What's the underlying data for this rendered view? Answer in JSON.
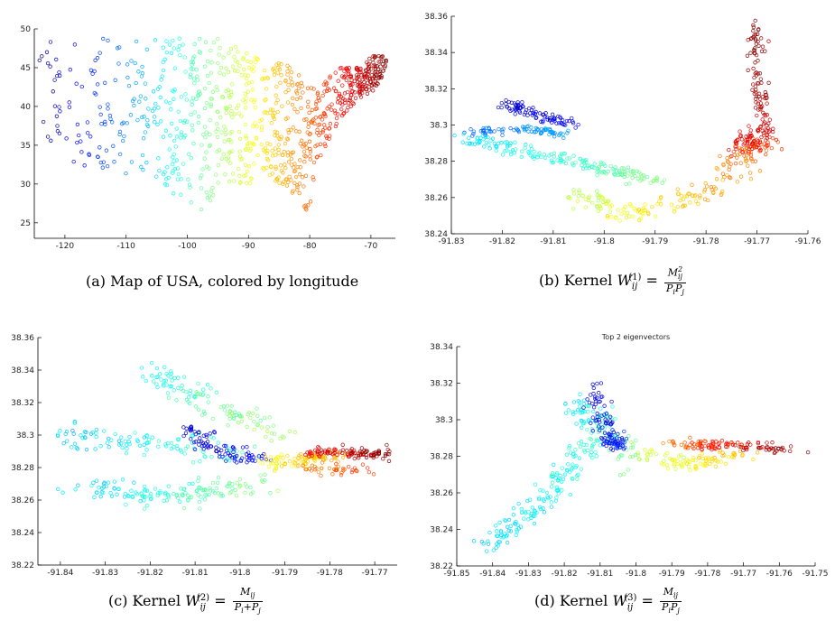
{
  "chart_data": [
    {
      "type": "scatter",
      "panel": "a",
      "caption": "(a)  Map of USA, colored by longitude",
      "title": "",
      "xlim": [
        -125,
        -66
      ],
      "ylim": [
        23,
        50
      ],
      "xticks": [
        -120,
        -110,
        -100,
        -90,
        -80,
        -70
      ],
      "yticks": [
        25,
        30,
        35,
        40,
        45,
        50
      ],
      "xtick_labels": [
        "-120",
        "-110",
        "-100",
        "-90",
        "-80",
        "-70"
      ],
      "ytick_labels": [
        "25",
        "30",
        "35",
        "40",
        "45",
        "50"
      ],
      "color_by": "x",
      "colormap": "jet",
      "point_count": 900,
      "xlabel": "",
      "ylabel": ""
    },
    {
      "type": "scatter",
      "panel": "b",
      "caption": "(b)  Kernel W",
      "title": "",
      "xlim": [
        -91.83,
        -91.76
      ],
      "ylim": [
        38.24,
        38.36
      ],
      "xticks": [
        -91.83,
        -91.82,
        -91.81,
        -91.8,
        -91.79,
        -91.78,
        -91.77,
        -91.76
      ],
      "yticks": [
        38.24,
        38.26,
        38.28,
        38.3,
        38.32,
        38.34,
        38.36
      ],
      "xtick_labels": [
        "-91.83",
        "-91.82",
        "-91.81",
        "-91.8",
        "-91.79",
        "-91.78",
        "-91.77",
        "-91.76"
      ],
      "ytick_labels": [
        "38.24",
        "38.26",
        "38.28",
        "38.3",
        "38.32",
        "38.34",
        "38.36"
      ],
      "color_by": "order",
      "colormap": "jet",
      "xlabel": "",
      "ylabel": ""
    },
    {
      "type": "scatter",
      "panel": "c",
      "caption": "(c)  Kernel W",
      "title": "",
      "xlim": [
        -91.845,
        -91.765
      ],
      "ylim": [
        38.22,
        38.36
      ],
      "xticks": [
        -91.84,
        -91.83,
        -91.82,
        -91.81,
        -91.8,
        -91.79,
        -91.78,
        -91.77
      ],
      "yticks": [
        38.22,
        38.24,
        38.26,
        38.28,
        38.3,
        38.32,
        38.34,
        38.36
      ],
      "xtick_labels": [
        "-91.84",
        "-91.83",
        "-91.82",
        "-91.81",
        "-91.8",
        "-91.79",
        "-91.78",
        "-91.77"
      ],
      "ytick_labels": [
        "38.22",
        "38.24",
        "38.26",
        "38.28",
        "38.3",
        "38.32",
        "38.34",
        "38.36"
      ],
      "color_by": "order",
      "colormap": "jet",
      "xlabel": "",
      "ylabel": ""
    },
    {
      "type": "scatter",
      "panel": "d",
      "caption": "(d)  Kernel W",
      "title": "Top 2 eigenvectors",
      "xlim": [
        -91.85,
        -91.75
      ],
      "ylim": [
        38.22,
        38.34
      ],
      "xticks": [
        -91.85,
        -91.84,
        -91.83,
        -91.82,
        -91.81,
        -91.8,
        -91.79,
        -91.78,
        -91.77,
        -91.76,
        -91.75
      ],
      "yticks": [
        38.22,
        38.24,
        38.26,
        38.28,
        38.3,
        38.32,
        38.34
      ],
      "xtick_labels": [
        "-91.85",
        "-91.84",
        "-91.83",
        "-91.82",
        "-91.81",
        "-91.8",
        "-91.79",
        "-91.78",
        "-91.77",
        "-91.76",
        "-91.75"
      ],
      "ytick_labels": [
        "38.22",
        "38.24",
        "38.26",
        "38.28",
        "38.3",
        "38.32",
        "38.34"
      ],
      "color_by": "order",
      "colormap": "jet",
      "xlabel": "",
      "ylabel": ""
    }
  ],
  "captions": {
    "a": "(a)  Map of USA, colored by longitude",
    "b_prefix": "(b)  Kernel ",
    "c_prefix": "(c)  Kernel ",
    "d_prefix": "(d)  Kernel ",
    "b_symbol": "W",
    "b_super": "(1)",
    "b_sub": "ij",
    "b_num": "M",
    "b_num_sup": "2",
    "b_num_sub": "ij",
    "b_den": "P",
    "b_den_sub1": "i",
    "b_den2": "P",
    "b_den_sub2": "j",
    "c_symbol": "W",
    "c_super": "(2)",
    "c_sub": "ij",
    "c_num": "M",
    "c_num_sub": "ij",
    "c_den": "P",
    "c_den_sub1": "i",
    "c_plus": "+",
    "c_den2": "P",
    "c_den_sub2": "j",
    "d_symbol": "W",
    "d_super": "(3)",
    "d_sub": "ij",
    "d_num": "M",
    "d_num_sub": "ij",
    "d_den": "P",
    "d_den_sub1": "i",
    "d_den2": "P",
    "d_den_sub2": "j",
    "equals": "="
  }
}
